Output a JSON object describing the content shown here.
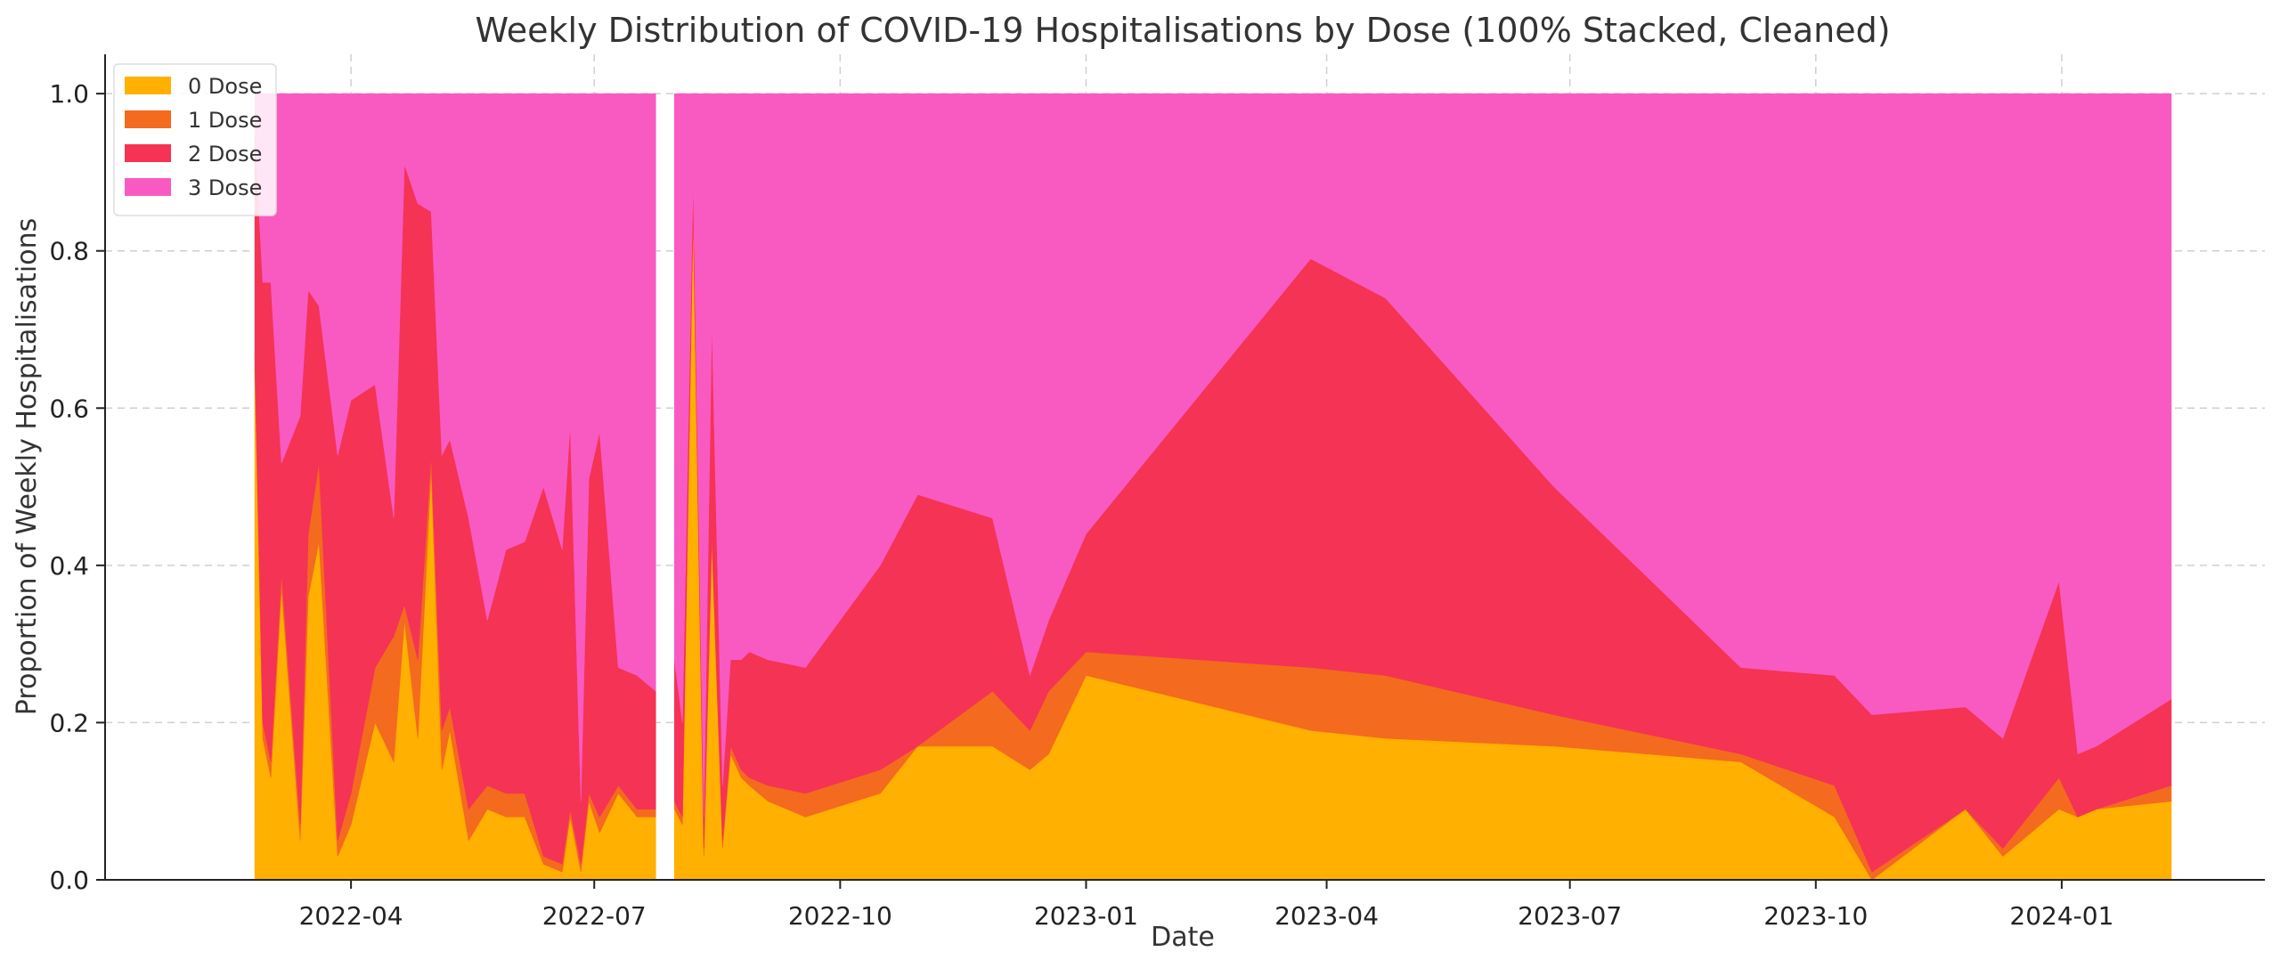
{
  "chart_data": {
    "type": "area",
    "stacked": "100%",
    "title": "Weekly Distribution of COVID-19 Hospitalisations by Dose (100% Stacked, Cleaned)",
    "xlabel": "Date",
    "ylabel": "Proportion of Weekly Hospitalisations",
    "xlim": [
      "2021-12-30",
      "2024-03-17"
    ],
    "ylim": [
      0,
      1.05
    ],
    "x_ticks": [
      "2022-04",
      "2022-07",
      "2022-10",
      "2023-01",
      "2023-04",
      "2023-07",
      "2023-10",
      "2024-01"
    ],
    "x_tick_dates": [
      "2022-04-01",
      "2022-07-01",
      "2022-10-01",
      "2023-01-01",
      "2023-04-01",
      "2023-07-01",
      "2023-10-01",
      "2024-01-01"
    ],
    "y_ticks": [
      "0.0",
      "0.2",
      "0.4",
      "0.6",
      "0.8",
      "1.0"
    ],
    "y_tick_values": [
      0.0,
      0.2,
      0.4,
      0.6,
      0.8,
      1.0
    ],
    "grid": true,
    "legend": "top-left",
    "colors": [
      "#FFB000",
      "#F46A1E",
      "#F43355",
      "#F95AC2"
    ],
    "series": [
      {
        "name": "0 Dose",
        "color": "#FFB000"
      },
      {
        "name": "1 Dose",
        "color": "#F46A1E"
      },
      {
        "name": "2 Dose",
        "color": "#F43355"
      },
      {
        "name": "3 Dose",
        "color": "#F95AC2"
      }
    ],
    "segments": [
      {
        "x": [
          "2022-02-24",
          "2022-02-27",
          "2022-03-02",
          "2022-03-06",
          "2022-03-13",
          "2022-03-16",
          "2022-03-20",
          "2022-03-27",
          "2022-04-01",
          "2022-04-10",
          "2022-04-17",
          "2022-04-21",
          "2022-04-26",
          "2022-05-01",
          "2022-05-05",
          "2022-05-08",
          "2022-05-15",
          "2022-05-22",
          "2022-05-29",
          "2022-06-05",
          "2022-06-12",
          "2022-06-19",
          "2022-06-22",
          "2022-06-26",
          "2022-06-29",
          "2022-07-03",
          "2022-07-10",
          "2022-07-17",
          "2022-07-24"
        ],
        "dose0": [
          0.65,
          0.18,
          0.13,
          0.37,
          0.05,
          0.36,
          0.43,
          0.03,
          0.07,
          0.2,
          0.15,
          0.33,
          0.18,
          0.52,
          0.14,
          0.19,
          0.05,
          0.09,
          0.08,
          0.08,
          0.02,
          0.01,
          0.08,
          0.01,
          0.1,
          0.06,
          0.11,
          0.08,
          0.08
        ],
        "dose1": [
          0.02,
          0.02,
          0.02,
          0.02,
          0.02,
          0.08,
          0.1,
          0.02,
          0.04,
          0.07,
          0.16,
          0.02,
          0.1,
          0.02,
          0.05,
          0.03,
          0.04,
          0.03,
          0.03,
          0.03,
          0.01,
          0.01,
          0.01,
          0.01,
          0.01,
          0.02,
          0.01,
          0.01,
          0.01
        ],
        "dose2": [
          0.28,
          0.56,
          0.61,
          0.14,
          0.52,
          0.31,
          0.2,
          0.49,
          0.5,
          0.36,
          0.15,
          0.56,
          0.58,
          0.31,
          0.35,
          0.34,
          0.37,
          0.21,
          0.31,
          0.32,
          0.47,
          0.4,
          0.49,
          0.08,
          0.4,
          0.49,
          0.15,
          0.17,
          0.15
        ],
        "dose3": [
          0.05,
          0.24,
          0.24,
          0.47,
          0.41,
          0.25,
          0.27,
          0.46,
          0.39,
          0.37,
          0.54,
          0.09,
          0.14,
          0.15,
          0.46,
          0.44,
          0.54,
          0.67,
          0.58,
          0.57,
          0.5,
          0.58,
          0.42,
          0.9,
          0.49,
          0.43,
          0.73,
          0.74,
          0.76
        ]
      },
      {
        "x": [
          "2022-07-31",
          "2022-08-03",
          "2022-08-07",
          "2022-08-11",
          "2022-08-14",
          "2022-08-18",
          "2022-08-21",
          "2022-08-25",
          "2022-08-28",
          "2022-09-04",
          "2022-09-18",
          "2022-10-16",
          "2022-10-30",
          "2022-11-27",
          "2022-12-11",
          "2022-12-18",
          "2023-01-01",
          "2023-03-26",
          "2023-04-23",
          "2023-06-25",
          "2023-09-03",
          "2023-10-08",
          "2023-10-22",
          "2023-11-26",
          "2023-12-10",
          "2023-12-31",
          "2024-01-07",
          "2024-01-14",
          "2024-02-11"
        ],
        "dose0": [
          0.09,
          0.07,
          0.84,
          0.03,
          0.43,
          0.04,
          0.16,
          0.13,
          0.12,
          0.1,
          0.08,
          0.11,
          0.17,
          0.17,
          0.14,
          0.16,
          0.26,
          0.19,
          0.18,
          0.17,
          0.15,
          0.08,
          0.0,
          0.09,
          0.03,
          0.09,
          0.08,
          0.09,
          0.1
        ],
        "dose1": [
          0.01,
          0.01,
          0.01,
          0.01,
          0.01,
          0.01,
          0.01,
          0.01,
          0.01,
          0.02,
          0.03,
          0.03,
          0.0,
          0.07,
          0.05,
          0.08,
          0.03,
          0.08,
          0.08,
          0.04,
          0.01,
          0.04,
          0.01,
          0.0,
          0.01,
          0.04,
          0.0,
          0.0,
          0.02
        ],
        "dose2": [
          0.18,
          0.12,
          0.04,
          0.04,
          0.27,
          0.07,
          0.11,
          0.14,
          0.16,
          0.16,
          0.16,
          0.26,
          0.32,
          0.22,
          0.07,
          0.09,
          0.15,
          0.52,
          0.48,
          0.29,
          0.11,
          0.14,
          0.2,
          0.13,
          0.14,
          0.25,
          0.08,
          0.08,
          0.11
        ],
        "dose3": [
          0.72,
          0.8,
          0.11,
          0.92,
          0.29,
          0.88,
          0.72,
          0.72,
          0.71,
          0.72,
          0.73,
          0.6,
          0.51,
          0.54,
          0.74,
          0.67,
          0.56,
          0.21,
          0.26,
          0.5,
          0.73,
          0.74,
          0.79,
          0.78,
          0.82,
          0.62,
          0.84,
          0.83,
          0.77
        ]
      }
    ]
  }
}
